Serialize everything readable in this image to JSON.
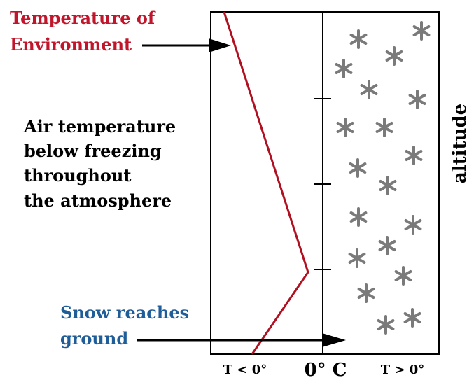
{
  "labels": {
    "env_line1": "Temperature of",
    "env_line2": "Environment",
    "air_lines": [
      "Air temperature",
      "below freezing",
      "throughout",
      "the atmosphere"
    ],
    "snow_line1": "Snow reaches",
    "snow_line2": "ground",
    "altitude": "altitude",
    "t_below": "T < 0°",
    "zero": "0° C",
    "t_above": "T > 0°"
  },
  "colors": {
    "environment": "#c0152b",
    "profile_line": "#b01020",
    "snow_text": "#1f5d99",
    "star": "#7a7a7a",
    "ink": "#000000"
  },
  "icons": {
    "snowflake": "asterisk-star",
    "arrow": "arrow-right"
  }
}
